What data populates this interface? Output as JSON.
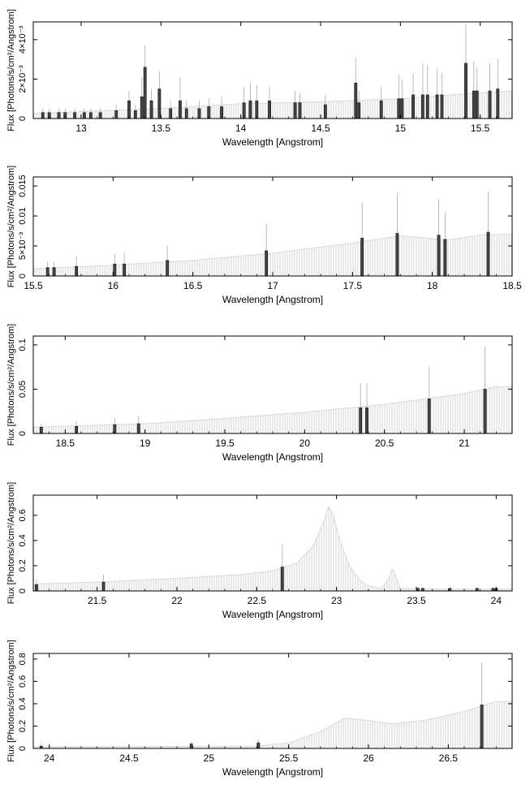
{
  "figure": {
    "ylabel": "Flux [Photons/s/cm²/Angstrom]",
    "xlabel": "Wavelength [Angstrom]"
  },
  "chart_data": [
    {
      "type": "bar",
      "xlabel": "Wavelength [Angstrom]",
      "ylabel": "Flux [Photons/s/cm²/Angstrom]",
      "xlim": [
        12.7,
        15.7
      ],
      "ylim": [
        0,
        0.0049
      ],
      "xticks": [
        13,
        13.5,
        14,
        14.5,
        15,
        15.5
      ],
      "yticks": [
        0,
        0.002,
        0.004
      ],
      "ytick_labels": [
        "0",
        "2×10⁻³",
        "4×10⁻³"
      ],
      "continuum": [
        [
          12.7,
          0.00025
        ],
        [
          13.3,
          0.00045
        ],
        [
          13.6,
          0.00055
        ],
        [
          14.0,
          0.00075
        ],
        [
          14.5,
          0.00085
        ],
        [
          15.0,
          0.001
        ],
        [
          15.4,
          0.00125
        ],
        [
          15.7,
          0.0014
        ]
      ],
      "lines": [
        {
          "x": 12.76,
          "y": 0.0003,
          "err": 0.0002
        },
        {
          "x": 12.8,
          "y": 0.0003,
          "err": 0.0002
        },
        {
          "x": 12.86,
          "y": 0.0003,
          "err": 0.0002
        },
        {
          "x": 12.9,
          "y": 0.0003,
          "err": 0.0002
        },
        {
          "x": 12.96,
          "y": 0.0003,
          "err": 0.0002
        },
        {
          "x": 13.02,
          "y": 0.0003,
          "err": 0.0002
        },
        {
          "x": 13.06,
          "y": 0.0003,
          "err": 0.0002
        },
        {
          "x": 13.12,
          "y": 0.0003,
          "err": 0.0002
        },
        {
          "x": 13.22,
          "y": 0.0004,
          "err": 0.0003
        },
        {
          "x": 13.3,
          "y": 0.0009,
          "err": 0.0005
        },
        {
          "x": 13.34,
          "y": 0.0004,
          "err": 0.0003
        },
        {
          "x": 13.38,
          "y": 0.0011,
          "err": 0.001
        },
        {
          "x": 13.4,
          "y": 0.0026,
          "err": 0.0011
        },
        {
          "x": 13.44,
          "y": 0.0009,
          "err": 0.0006
        },
        {
          "x": 13.49,
          "y": 0.0015,
          "err": 0.0009
        },
        {
          "x": 13.56,
          "y": 0.0005,
          "err": 0.0004
        },
        {
          "x": 13.62,
          "y": 0.0009,
          "err": 0.0012
        },
        {
          "x": 13.66,
          "y": 0.0005,
          "err": 0.0004
        },
        {
          "x": 13.74,
          "y": 0.0005,
          "err": 0.0004
        },
        {
          "x": 13.8,
          "y": 0.0006,
          "err": 0.0004
        },
        {
          "x": 13.88,
          "y": 0.0006,
          "err": 0.0005
        },
        {
          "x": 14.02,
          "y": 0.0008,
          "err": 0.0008
        },
        {
          "x": 14.06,
          "y": 0.0009,
          "err": 0.0009
        },
        {
          "x": 14.1,
          "y": 0.0009,
          "err": 0.0008
        },
        {
          "x": 14.18,
          "y": 0.0009,
          "err": 0.0007
        },
        {
          "x": 14.34,
          "y": 0.0008,
          "err": 0.0006
        },
        {
          "x": 14.37,
          "y": 0.0008,
          "err": 0.0005
        },
        {
          "x": 14.53,
          "y": 0.0007,
          "err": 0.0005
        },
        {
          "x": 14.72,
          "y": 0.0018,
          "err": 0.0013
        },
        {
          "x": 14.74,
          "y": 0.0008,
          "err": 0.0006
        },
        {
          "x": 14.88,
          "y": 0.0009,
          "err": 0.0007
        },
        {
          "x": 14.99,
          "y": 0.001,
          "err": 0.0012
        },
        {
          "x": 15.01,
          "y": 0.001,
          "err": 0.001
        },
        {
          "x": 15.08,
          "y": 0.0012,
          "err": 0.0011
        },
        {
          "x": 15.14,
          "y": 0.0012,
          "err": 0.0016
        },
        {
          "x": 15.17,
          "y": 0.0012,
          "err": 0.0015
        },
        {
          "x": 15.23,
          "y": 0.0012,
          "err": 0.0013
        },
        {
          "x": 15.26,
          "y": 0.0012,
          "err": 0.0011
        },
        {
          "x": 15.41,
          "y": 0.0028,
          "err": 0.002
        },
        {
          "x": 15.46,
          "y": 0.0014,
          "err": 0.0015
        },
        {
          "x": 15.48,
          "y": 0.0014,
          "err": 0.0012
        },
        {
          "x": 15.56,
          "y": 0.0014,
          "err": 0.0014
        },
        {
          "x": 15.61,
          "y": 0.0015,
          "err": 0.0015
        }
      ]
    },
    {
      "type": "bar",
      "xlabel": "Wavelength [Angstrom]",
      "ylabel": "Flux [Photons/s/cm²/Angstrom]",
      "xlim": [
        15.5,
        18.5
      ],
      "ylim": [
        0,
        0.0165
      ],
      "xticks": [
        15.5,
        16,
        16.5,
        17,
        17.5,
        18,
        18.5
      ],
      "yticks": [
        0,
        0.005,
        0.01,
        0.015
      ],
      "ytick_labels": [
        "0",
        "5×10⁻³",
        "0.01",
        "0.015"
      ],
      "continuum": [
        [
          15.5,
          0.0012
        ],
        [
          16.0,
          0.0018
        ],
        [
          16.5,
          0.0026
        ],
        [
          17.0,
          0.0038
        ],
        [
          17.5,
          0.0055
        ],
        [
          17.8,
          0.0067
        ],
        [
          18.1,
          0.006
        ],
        [
          18.3,
          0.0068
        ],
        [
          18.5,
          0.007
        ]
      ],
      "lines": [
        {
          "x": 15.59,
          "y": 0.0014,
          "err": 0.001
        },
        {
          "x": 15.63,
          "y": 0.0014,
          "err": 0.001
        },
        {
          "x": 15.77,
          "y": 0.0016,
          "err": 0.0017
        },
        {
          "x": 16.01,
          "y": 0.002,
          "err": 0.0018
        },
        {
          "x": 16.07,
          "y": 0.002,
          "err": 0.0019
        },
        {
          "x": 16.34,
          "y": 0.0026,
          "err": 0.0025
        },
        {
          "x": 16.96,
          "y": 0.0042,
          "err": 0.0045
        },
        {
          "x": 17.56,
          "y": 0.0063,
          "err": 0.006
        },
        {
          "x": 17.78,
          "y": 0.0071,
          "err": 0.0068
        },
        {
          "x": 18.04,
          "y": 0.0068,
          "err": 0.006
        },
        {
          "x": 18.08,
          "y": 0.0061,
          "err": 0.0045
        },
        {
          "x": 18.35,
          "y": 0.0073,
          "err": 0.0068
        }
      ]
    },
    {
      "type": "bar",
      "xlabel": "Wavelength [Angstrom]",
      "ylabel": "Flux [Photons/s/cm²/Angstrom]",
      "xlim": [
        18.3,
        21.3
      ],
      "ylim": [
        0,
        0.11
      ],
      "xticks": [
        18.5,
        19,
        19.5,
        20,
        20.5,
        21
      ],
      "yticks": [
        0,
        0.05,
        0.1
      ],
      "ytick_labels": [
        "0",
        "0.05",
        "0.1"
      ],
      "continuum": [
        [
          18.3,
          0.007
        ],
        [
          19.0,
          0.011
        ],
        [
          19.5,
          0.017
        ],
        [
          20.0,
          0.024
        ],
        [
          20.5,
          0.033
        ],
        [
          21.0,
          0.045
        ],
        [
          21.2,
          0.053
        ],
        [
          21.3,
          0.053
        ]
      ],
      "lines": [
        {
          "x": 18.35,
          "y": 0.007,
          "err": 0.004
        },
        {
          "x": 18.57,
          "y": 0.008,
          "err": 0.006
        },
        {
          "x": 18.81,
          "y": 0.01,
          "err": 0.008
        },
        {
          "x": 18.96,
          "y": 0.011,
          "err": 0.009
        },
        {
          "x": 20.35,
          "y": 0.029,
          "err": 0.028
        },
        {
          "x": 20.39,
          "y": 0.029,
          "err": 0.028
        },
        {
          "x": 20.78,
          "y": 0.039,
          "err": 0.036
        },
        {
          "x": 21.13,
          "y": 0.05,
          "err": 0.048
        }
      ]
    },
    {
      "type": "bar",
      "xlabel": "Wavelength [Angstrom]",
      "ylabel": "Flux [Photons/s/cm²/Angstrom]",
      "xlim": [
        21.1,
        24.1
      ],
      "ylim": [
        0,
        0.76
      ],
      "xticks": [
        21.5,
        22,
        22.5,
        23,
        23.5,
        24
      ],
      "yticks": [
        0,
        0.2,
        0.4,
        0.6
      ],
      "ytick_labels": [
        "0",
        "0.2",
        "0.4",
        "0.6"
      ],
      "continuum": [
        [
          21.1,
          0.055
        ],
        [
          21.5,
          0.07
        ],
        [
          22.0,
          0.1
        ],
        [
          22.4,
          0.13
        ],
        [
          22.6,
          0.16
        ],
        [
          22.75,
          0.22
        ],
        [
          22.85,
          0.35
        ],
        [
          22.92,
          0.55
        ],
        [
          22.95,
          0.67
        ],
        [
          22.98,
          0.6
        ],
        [
          23.02,
          0.4
        ],
        [
          23.08,
          0.2
        ],
        [
          23.15,
          0.08
        ],
        [
          23.2,
          0.04
        ],
        [
          23.28,
          0.02
        ],
        [
          23.32,
          0.08
        ],
        [
          23.35,
          0.18
        ],
        [
          23.37,
          0.12
        ],
        [
          23.4,
          0.02
        ],
        [
          23.5,
          0.015
        ],
        [
          24.1,
          0.015
        ]
      ],
      "lines": [
        {
          "x": 21.12,
          "y": 0.05,
          "err": 0.04
        },
        {
          "x": 21.54,
          "y": 0.07,
          "err": 0.06
        },
        {
          "x": 22.66,
          "y": 0.19,
          "err": 0.18
        },
        {
          "x": 23.51,
          "y": 0.02,
          "err": 0.01
        },
        {
          "x": 23.54,
          "y": 0.02,
          "err": 0.01
        },
        {
          "x": 23.71,
          "y": 0.02,
          "err": 0.01
        },
        {
          "x": 23.88,
          "y": 0.02,
          "err": 0.01
        },
        {
          "x": 23.98,
          "y": 0.02,
          "err": 0.01
        },
        {
          "x": 24.0,
          "y": 0.02,
          "err": 0.01
        }
      ]
    },
    {
      "type": "bar",
      "xlabel": "Wavelength [Angstrom]",
      "ylabel": "Flux [Photons/s/cm²/Angstrom]",
      "xlim": [
        23.9,
        26.9
      ],
      "ylim": [
        0,
        0.85
      ],
      "xticks": [
        24,
        24.5,
        25,
        25.5,
        26,
        26.5
      ],
      "yticks": [
        0,
        0.2,
        0.4,
        0.6,
        0.8
      ],
      "ytick_labels": [
        "0",
        "0.2",
        "0.4",
        "0.6",
        "0.8"
      ],
      "continuum": [
        [
          23.9,
          0.015
        ],
        [
          25.3,
          0.02
        ],
        [
          25.5,
          0.05
        ],
        [
          25.7,
          0.15
        ],
        [
          25.85,
          0.27
        ],
        [
          26.0,
          0.25
        ],
        [
          26.15,
          0.22
        ],
        [
          26.35,
          0.25
        ],
        [
          26.6,
          0.33
        ],
        [
          26.8,
          0.42
        ],
        [
          26.9,
          0.42
        ]
      ],
      "lines": [
        {
          "x": 23.95,
          "y": 0.02,
          "err": 0.02
        },
        {
          "x": 24.89,
          "y": 0.04,
          "err": 0.02
        },
        {
          "x": 25.31,
          "y": 0.05,
          "err": 0.03
        },
        {
          "x": 26.71,
          "y": 0.39,
          "err": 0.38
        }
      ]
    }
  ]
}
